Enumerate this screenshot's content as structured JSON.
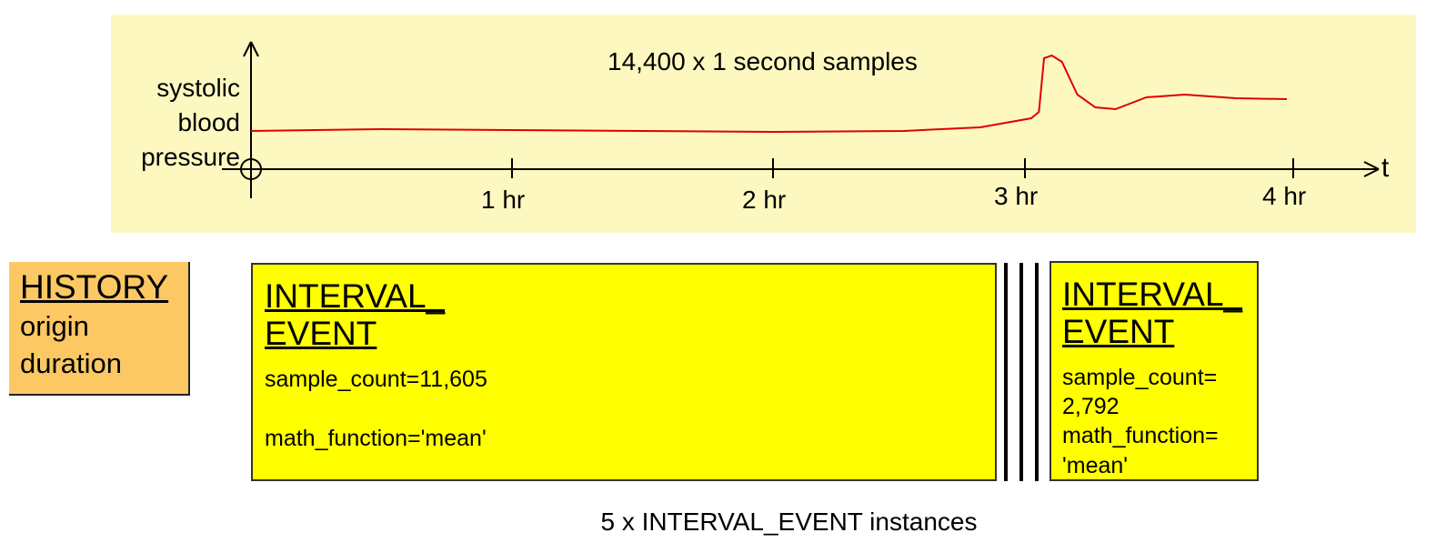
{
  "chart_data": {
    "type": "line",
    "title": "14,400 x 1 second samples",
    "ylabel": [
      "systolic",
      "blood",
      "pressure"
    ],
    "xlabel": "t",
    "x_ticks": [
      "1 hr",
      "2 hr",
      "3 hr",
      "4 hr"
    ],
    "series": [
      {
        "color": "#e00000",
        "x": [
          0,
          0.5,
          1.0,
          1.5,
          2.0,
          2.5,
          2.8,
          3.0,
          3.03,
          3.05,
          3.08,
          3.12,
          3.18,
          3.25,
          3.33,
          3.45,
          3.6,
          3.8,
          4.0
        ],
        "y": [
          42,
          44,
          43,
          42,
          41,
          42,
          46,
          56,
          63,
          122,
          125,
          118,
          82,
          68,
          66,
          79,
          82,
          78,
          77
        ]
      }
    ],
    "xlim": [
      0,
      4.0
    ],
    "y_range_note": "arbitrary units",
    "colors": {
      "panel": "#fdf8c0",
      "axis": "#000000",
      "line": "#e00000"
    }
  },
  "history": {
    "title": "HISTORY",
    "fields": [
      "origin",
      "duration"
    ],
    "color": "#fbc864"
  },
  "events": [
    {
      "title1": "INTERVAL_",
      "title2": "EVENT",
      "sample_count": "sample_count=11,605",
      "math_function": "math_function='mean'"
    },
    {
      "title1": "INTERVAL_",
      "title2": "EVENT",
      "sample_count_1": "sample_count=",
      "sample_count_2": "2,792",
      "math_function_1": "math_function=",
      "math_function_2": "'mean'"
    }
  ],
  "caption": "5 x INTERVAL_EVENT instances",
  "event_color": "#ffff00"
}
